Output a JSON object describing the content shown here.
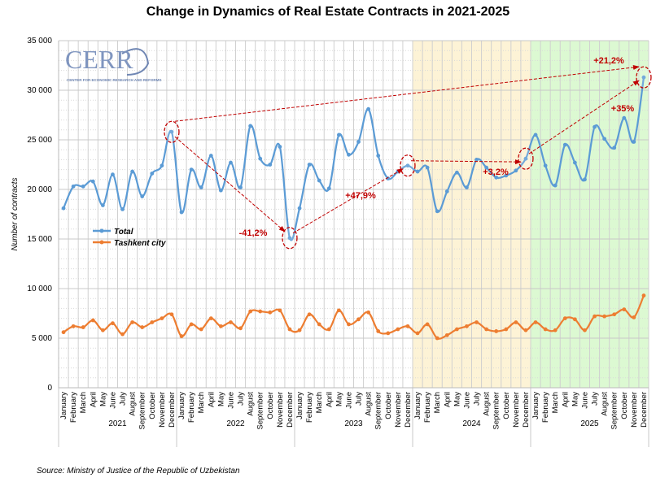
{
  "chart_data": {
    "type": "line",
    "title": "Change in Dynamics of Real Estate Contracts in 2021-2025",
    "ylabel": "Number of contracts",
    "xlabel": "",
    "ylim": [
      0,
      35000
    ],
    "yticks": [
      "0",
      "5 000",
      "10 000",
      "15 000",
      "20 000",
      "25 000",
      "30 000",
      "35 000"
    ],
    "ytick_values": [
      0,
      5000,
      10000,
      15000,
      20000,
      25000,
      30000,
      35000
    ],
    "months": [
      "January",
      "February",
      "March",
      "April",
      "May",
      "June",
      "July",
      "August",
      "September",
      "October",
      "November",
      "December"
    ],
    "years": [
      "2021",
      "2022",
      "2023",
      "2024",
      "2025"
    ],
    "grid": true,
    "legend_position": "center-left",
    "shaded_years": [
      {
        "year": "2024",
        "color": "#fdf3d6"
      },
      {
        "year": "2025",
        "color": "#dcf9d2"
      }
    ],
    "series": [
      {
        "name": "Total",
        "color": "#5b9bd5",
        "values": [
          18100,
          20300,
          20300,
          20800,
          18400,
          21500,
          18000,
          21800,
          19300,
          21600,
          22400,
          25800,
          17700,
          22000,
          20200,
          23400,
          19900,
          22700,
          20200,
          26400,
          23100,
          22500,
          24300,
          15100,
          18100,
          22500,
          20900,
          20100,
          25500,
          23500,
          24800,
          28100,
          23400,
          21100,
          21800,
          22400,
          21800,
          22200,
          17800,
          19800,
          21700,
          20200,
          23000,
          22200,
          21200,
          21400,
          21900,
          23100,
          25500,
          22400,
          20400,
          24500,
          22700,
          21000,
          26300,
          25100,
          24200,
          27200,
          24800,
          31300
        ]
      },
      {
        "name": "Tashkent city",
        "color": "#ed7d31",
        "values": [
          5600,
          6200,
          6100,
          6800,
          5800,
          6500,
          5400,
          6600,
          6100,
          6600,
          7000,
          7400,
          5200,
          6400,
          5900,
          7000,
          6200,
          6600,
          6000,
          7700,
          7700,
          7600,
          7800,
          5900,
          5800,
          7400,
          6400,
          5900,
          7800,
          6400,
          6900,
          7600,
          5700,
          5500,
          5900,
          6200,
          5500,
          6400,
          5000,
          5300,
          5900,
          6200,
          6600,
          5900,
          5700,
          5900,
          6600,
          5800,
          6600,
          5900,
          5800,
          7000,
          6900,
          5800,
          7200,
          7200,
          7400,
          7900,
          7100,
          9300
        ]
      }
    ],
    "annotations": [
      {
        "label": "-41,2%",
        "from": "December 2021",
        "to": "December 2022"
      },
      {
        "label": "+47,9%",
        "from": "December 2022",
        "to": "December 2023"
      },
      {
        "label": "+3,2%",
        "from": "December 2023",
        "to": "December 2024"
      },
      {
        "label": "+35%",
        "from": "December 2024",
        "to": "December 2025"
      },
      {
        "label": "+21,2%",
        "from": "December 2021",
        "to": "December 2025"
      }
    ],
    "annotation_color": "#c00000"
  },
  "logo": {
    "text": "CERR",
    "subtitle": "CENTER FOR ECONOMIC RESEARCH AND REFORMS"
  },
  "source": "Source: Ministry of Justice of the Republic of Uzbekistan"
}
